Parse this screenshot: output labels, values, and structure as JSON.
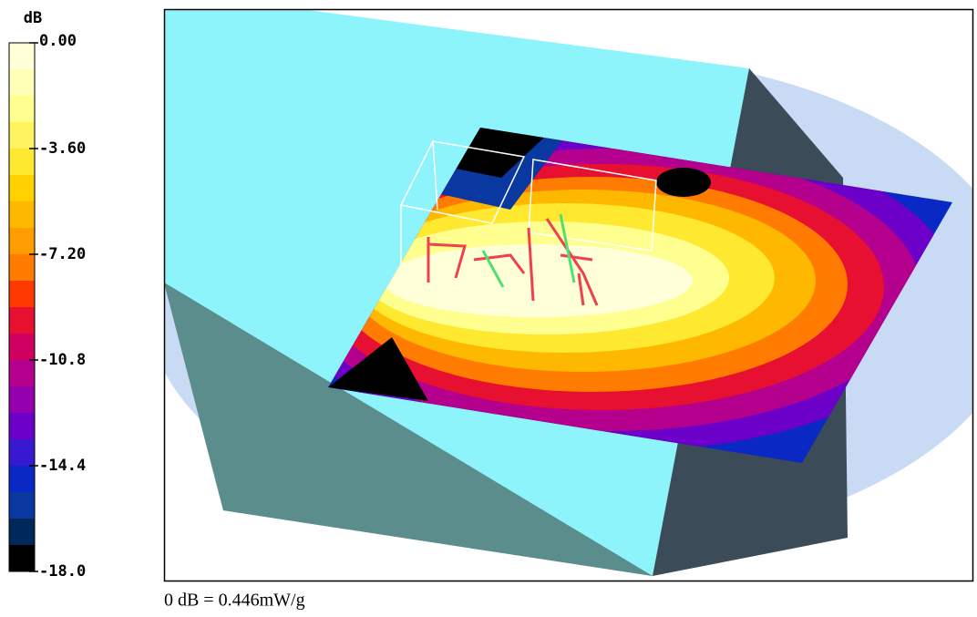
{
  "chart_data": {
    "type": "heatmap",
    "colorbar": {
      "label": "dB",
      "lim": [
        -18,
        0
      ],
      "ticks": [
        {
          "value": 0,
          "label": "0.00"
        },
        {
          "value": -3.6,
          "label": "-3.60"
        },
        {
          "value": -7.2,
          "label": "-7.20"
        },
        -10.8,
        -14.4,
        {
          "value": -18,
          "label": "-18.0"
        }
      ],
      "colors": [
        "#ffffd8",
        "#ffffb8",
        "#ffff90",
        "#fff460",
        "#ffe830",
        "#ffd200",
        "#ffb800",
        "#ff9c00",
        "#ff7c00",
        "#ff3a00",
        "#e81030",
        "#d00060",
        "#b4008c",
        "#9400b0",
        "#6c00c8",
        "#3818d0",
        "#0a28c4",
        "#0838a0",
        "#002858",
        "#000000"
      ]
    },
    "caption": "0 dB = 0.446mW/g"
  }
}
